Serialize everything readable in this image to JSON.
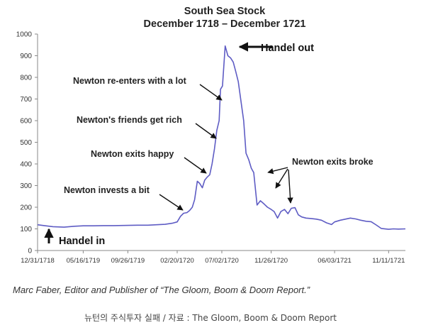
{
  "chart_data": {
    "type": "line",
    "title": "South Sea Stock",
    "subtitle": "December 1718 – December 1721",
    "xlabel": "",
    "ylabel": "",
    "ylim": [
      0,
      1000
    ],
    "xlim": [
      "1718-12-31",
      "1721-12-31"
    ],
    "yticks": [
      0,
      100,
      200,
      300,
      400,
      500,
      600,
      700,
      800,
      900,
      1000
    ],
    "xtick_labels": [
      "12/31/1718",
      "05/16/1719",
      "09/26/1719",
      "02/20/1720",
      "07/02/1720",
      "11/26/1720",
      "06/03/1721",
      "11/11/1721"
    ],
    "xtick_dates": [
      "1718-12-31",
      "1719-05-16",
      "1719-09-26",
      "1720-02-20",
      "1720-07-02",
      "1720-11-26",
      "1721-06-03",
      "1721-11-11"
    ],
    "grid": false,
    "line_color": "#5e5cc4",
    "series": [
      {
        "x": [
          "1718-12-31",
          "1719-01-20",
          "1719-02-15",
          "1719-03-20",
          "1719-04-20",
          "1719-05-16",
          "1719-06-15",
          "1719-07-15",
          "1719-08-15",
          "1719-09-26",
          "1719-10-25",
          "1719-11-25",
          "1719-12-20",
          "1720-01-15",
          "1720-02-05",
          "1720-02-20",
          "1720-03-01",
          "1720-03-10",
          "1720-03-20",
          "1720-03-28",
          "1720-04-05",
          "1720-04-12",
          "1720-04-20",
          "1720-04-27",
          "1720-05-05",
          "1720-05-12",
          "1720-05-20",
          "1720-05-27",
          "1720-06-03",
          "1720-06-10",
          "1720-06-17",
          "1720-06-24",
          "1720-06-28",
          "1720-07-04",
          "1720-07-12",
          "1720-07-20",
          "1720-07-28",
          "1720-08-05",
          "1720-08-12",
          "1720-08-20",
          "1720-08-28",
          "1720-09-05",
          "1720-09-12",
          "1720-09-20",
          "1720-09-28",
          "1720-10-05",
          "1720-10-15",
          "1720-10-25",
          "1720-11-05",
          "1720-11-15",
          "1720-11-26",
          "1720-12-05",
          "1720-12-15",
          "1720-12-25",
          "1721-01-05",
          "1721-01-15",
          "1721-01-25",
          "1721-02-05",
          "1721-02-15",
          "1721-02-25",
          "1721-03-10",
          "1721-03-25",
          "1721-04-10",
          "1721-04-25",
          "1721-05-10",
          "1721-05-25",
          "1721-06-03",
          "1721-06-20",
          "1721-07-05",
          "1721-07-20",
          "1721-08-05",
          "1721-08-20",
          "1721-09-05",
          "1721-09-20",
          "1721-10-05",
          "1721-10-20",
          "1721-11-11",
          "1721-11-25",
          "1721-12-10",
          "1721-12-31"
        ],
        "values": [
          119,
          115,
          110,
          108,
          112,
          114,
          114,
          115,
          115,
          116,
          117,
          117,
          119,
          121,
          126,
          132,
          158,
          172,
          175,
          185,
          200,
          235,
          320,
          310,
          290,
          325,
          340,
          350,
          400,
          470,
          555,
          600,
          745,
          760,
          945,
          900,
          890,
          870,
          830,
          780,
          690,
          600,
          450,
          420,
          380,
          360,
          210,
          230,
          215,
          200,
          190,
          180,
          150,
          180,
          190,
          170,
          195,
          198,
          165,
          155,
          150,
          148,
          145,
          140,
          128,
          120,
          132,
          140,
          145,
          150,
          146,
          140,
          135,
          133,
          118,
          102,
          98,
          100,
          99,
          100
        ]
      }
    ],
    "annotations": [
      {
        "text": "Handel out"
      },
      {
        "text": "Newton re-enters with a lot"
      },
      {
        "text": "Newton's friends get rich"
      },
      {
        "text": "Newton exits happy"
      },
      {
        "text": "Newton invests a bit"
      },
      {
        "text": "Newton exits broke"
      },
      {
        "text": "Handel in"
      }
    ]
  },
  "credit": "Marc Faber, Editor and Publisher of “The Gloom, Boom & Doom Report.”",
  "caption": "뉴턴의 주식투자 실패 / 자료 : The Gloom, Boom & Doom Report"
}
